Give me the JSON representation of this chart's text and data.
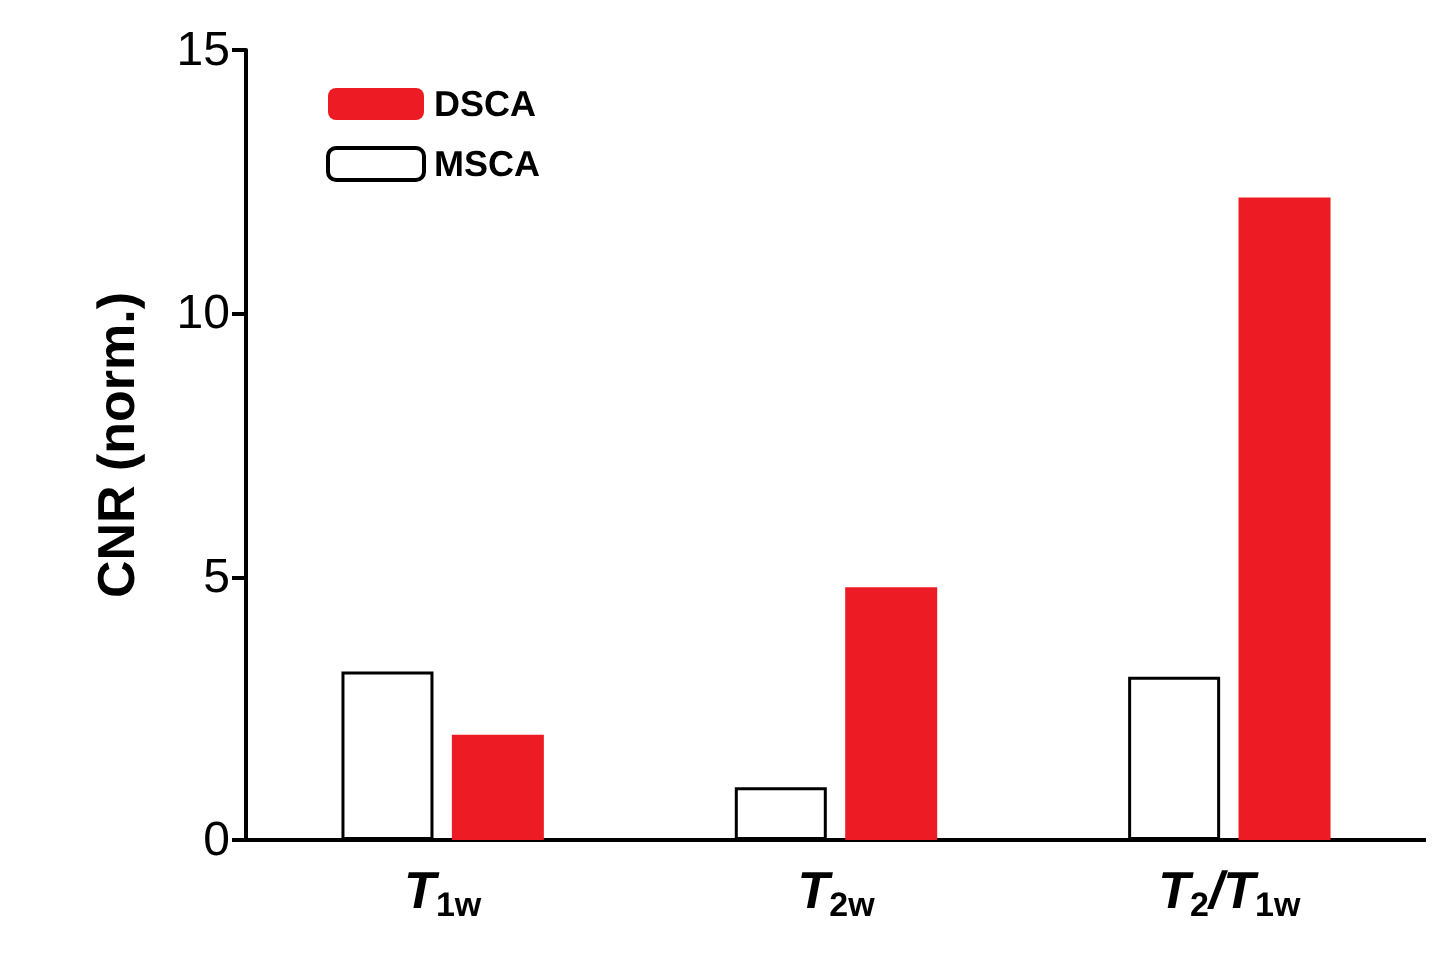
{
  "chart_data": {
    "type": "bar",
    "ylabel": "CNR (norm.)",
    "categories": [
      "T$_{1w}$",
      "T$_{2w}$",
      "T$_{2}$/T$_{1w}$"
    ],
    "series": [
      {
        "name": "MSCA",
        "color": "#ffffff",
        "values": [
          3.2,
          1.0,
          3.1
        ]
      },
      {
        "name": "DSCA",
        "color": "#ed1c24",
        "values": [
          2.0,
          4.8,
          12.2
        ]
      }
    ],
    "ylim": [
      0,
      15
    ],
    "yticks": [
      0,
      5,
      10,
      15
    ],
    "grid": false,
    "legend": "top left"
  }
}
